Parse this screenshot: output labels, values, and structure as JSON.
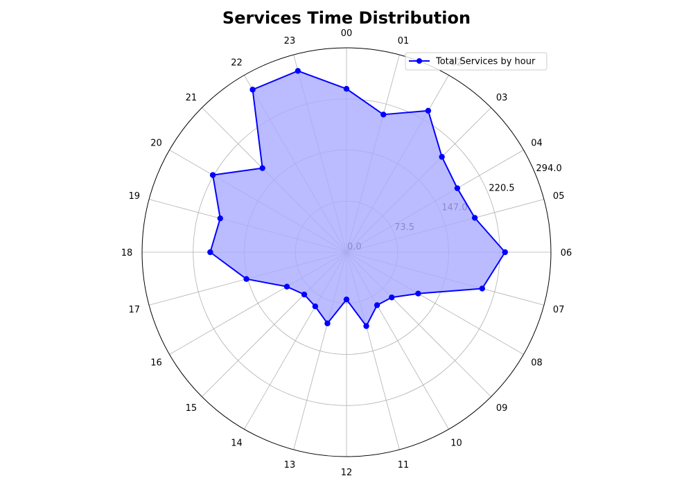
{
  "chart_data": {
    "type": "radar",
    "title": "Services Time Distribution",
    "categories": [
      "00",
      "01",
      "02",
      "03",
      "04",
      "05",
      "06",
      "07",
      "08",
      "09",
      "10",
      "11",
      "12",
      "13",
      "14",
      "15",
      "16",
      "17",
      "18",
      "19",
      "20",
      "21",
      "22",
      "23"
    ],
    "series": [
      {
        "name": "Total Services by hour",
        "color": "#0000ff",
        "fill_color": "#aaaaff",
        "values": [
          235,
          205,
          235,
          194,
          184,
          191,
          228,
          202,
          119,
          92,
          88,
          110,
          68,
          106,
          90,
          86,
          99,
          149,
          196,
          188,
          222,
          171,
          270,
          270
        ]
      }
    ],
    "r_ticks": [
      "0.0",
      "73.5",
      "147.0",
      "220.5",
      "294.0"
    ],
    "r_max": 294.0,
    "grid": true,
    "legend_position": "top-right"
  }
}
